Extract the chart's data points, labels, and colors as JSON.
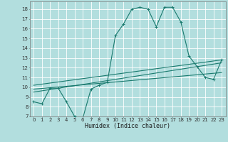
{
  "xlabel": "Humidex (Indice chaleur)",
  "background_color": "#b2dede",
  "grid_color": "#ffffff",
  "line_color": "#1a7a6e",
  "xlim": [
    -0.5,
    23.5
  ],
  "ylim": [
    7,
    18.8
  ],
  "xticks": [
    0,
    1,
    2,
    3,
    4,
    5,
    6,
    7,
    8,
    9,
    10,
    11,
    12,
    13,
    14,
    15,
    16,
    17,
    18,
    19,
    20,
    21,
    22,
    23
  ],
  "yticks": [
    7,
    8,
    9,
    10,
    11,
    12,
    13,
    14,
    15,
    16,
    17,
    18
  ],
  "curve1_x": [
    0,
    1,
    2,
    3,
    4,
    5,
    6,
    7,
    8,
    9,
    10,
    11,
    12,
    13,
    14,
    15,
    16,
    17,
    18,
    19,
    20,
    21,
    22,
    23
  ],
  "curve1_y": [
    8.5,
    8.3,
    9.9,
    9.9,
    8.5,
    7.0,
    6.8,
    9.8,
    10.2,
    10.5,
    15.3,
    16.5,
    18.0,
    18.2,
    18.0,
    16.2,
    18.2,
    18.2,
    16.7,
    13.2,
    12.1,
    11.0,
    10.8,
    12.8
  ],
  "line1_x": [
    0,
    23
  ],
  "line1_y": [
    9.5,
    12.5
  ],
  "line2_x": [
    0,
    23
  ],
  "line2_y": [
    9.8,
    11.5
  ],
  "line3_x": [
    0,
    23
  ],
  "line3_y": [
    10.2,
    12.8
  ]
}
